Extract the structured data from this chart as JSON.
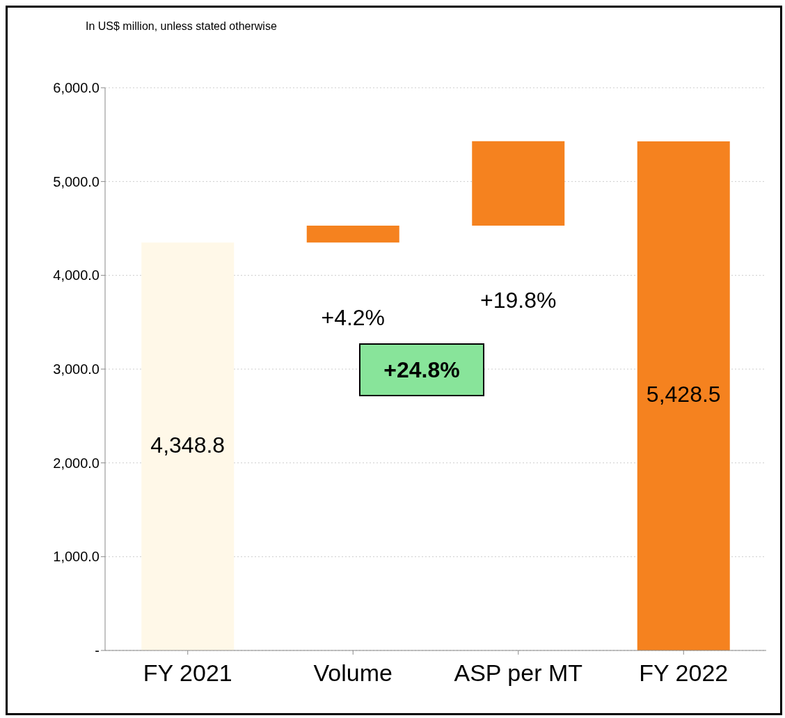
{
  "chart_data": {
    "type": "bar",
    "subtitle": "In US$ million, unless stated otherwise",
    "categories": [
      "FY 2021",
      "Volume",
      "ASP per MT",
      "FY 2022"
    ],
    "values": [
      4348.8,
      180,
      900,
      5428.5
    ],
    "base": [
      0,
      4348.8,
      4530,
      0
    ],
    "colors": [
      "#fff8e8",
      "#f5821f",
      "#f5821f",
      "#f5821f"
    ],
    "value_labels": [
      "4,348.8",
      null,
      null,
      "5,428.5"
    ],
    "annotations": [
      "+4.2%",
      "+19.8%",
      "+24.8%"
    ],
    "ylim": [
      0,
      6000
    ],
    "yticks": [
      {
        "value": 0,
        "label": "-"
      },
      {
        "value": 1000,
        "label": "1,000.0"
      },
      {
        "value": 2000,
        "label": "2,000.0"
      },
      {
        "value": 3000,
        "label": "3,000.0"
      },
      {
        "value": 4000,
        "label": "4,000.0"
      },
      {
        "value": 5000,
        "label": "5,000.0"
      },
      {
        "value": 6000,
        "label": "6,000.0"
      }
    ],
    "grid": "y"
  }
}
